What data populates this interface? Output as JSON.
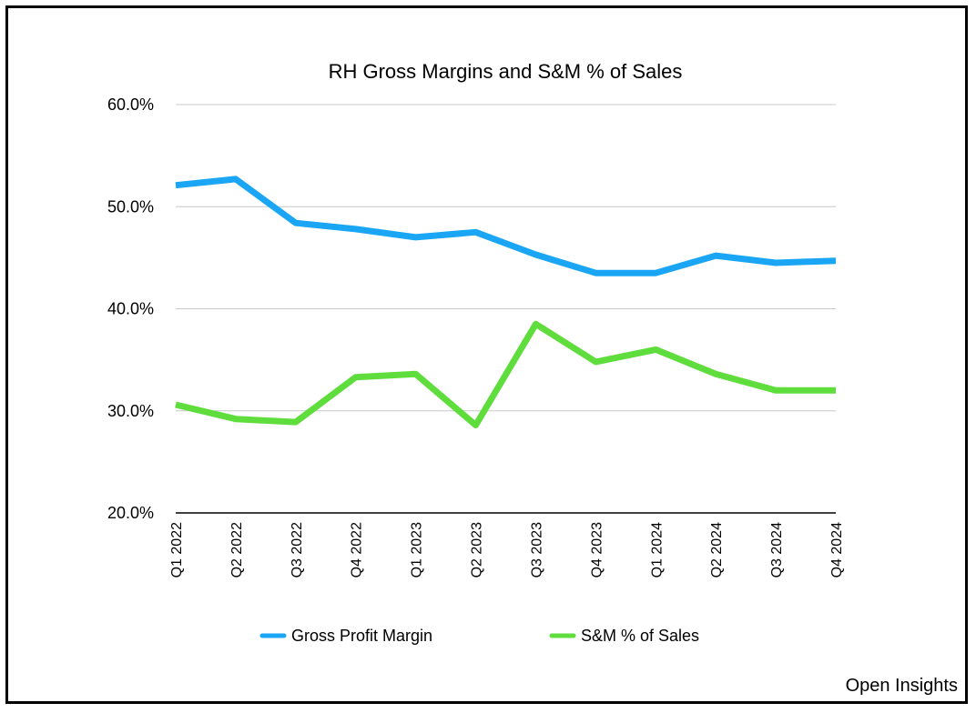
{
  "chart_data": {
    "type": "line",
    "title": "RH Gross Margins and S&M % of Sales",
    "xlabel": "",
    "ylabel": "",
    "ylim": [
      20.0,
      60.0
    ],
    "yticks": [
      "20.0%",
      "30.0%",
      "40.0%",
      "50.0%",
      "60.0%"
    ],
    "ytick_values": [
      20,
      30,
      40,
      50,
      60
    ],
    "categories": [
      "Q1 2022",
      "Q2 2022",
      "Q3 2022",
      "Q4 2022",
      "Q1 2023",
      "Q2 2023",
      "Q3 2023",
      "Q4 2023",
      "Q1 2024",
      "Q2 2024",
      "Q3 2024",
      "Q4 2024"
    ],
    "series": [
      {
        "name": "Gross Profit Margin",
        "color": "#1aa6f5",
        "values": [
          52.1,
          52.7,
          48.4,
          47.8,
          47.0,
          47.5,
          45.3,
          43.5,
          43.5,
          45.2,
          44.5,
          44.7
        ]
      },
      {
        "name": "S&M % of Sales",
        "color": "#5fdd3c",
        "values": [
          30.6,
          29.2,
          28.9,
          33.3,
          33.6,
          28.6,
          38.5,
          34.8,
          36.0,
          33.6,
          32.0,
          32.0
        ]
      }
    ],
    "grid": true,
    "legend_position": "bottom"
  },
  "credit": "Open Insights"
}
